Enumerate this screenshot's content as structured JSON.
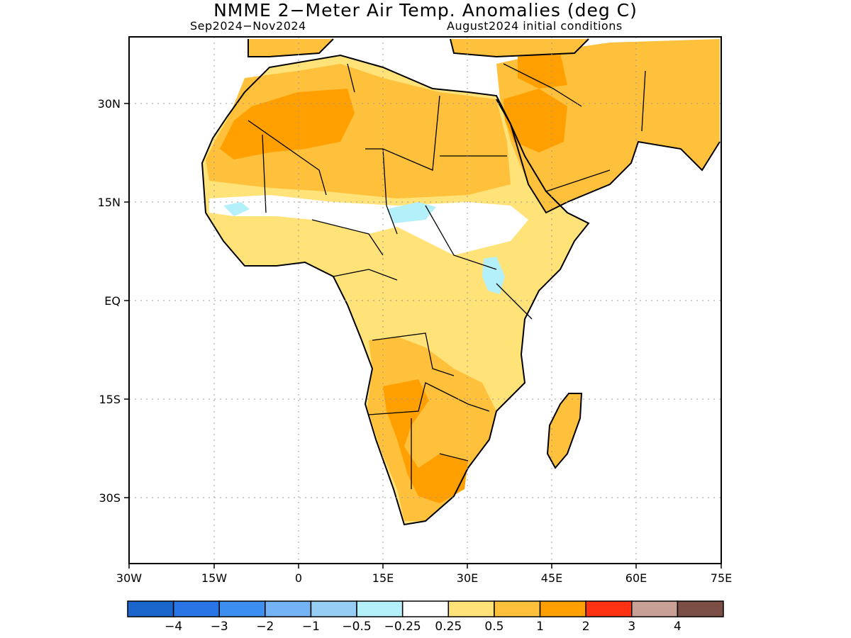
{
  "title": "NMME 2−Meter Air Temp. Anomalies (deg C)",
  "period": "Sep2024−Nov2024",
  "initial_conditions": "August2024 initial conditions",
  "map": {
    "lon_labels": [
      "30W",
      "15W",
      "0",
      "15E",
      "30E",
      "45E",
      "60E",
      "75E"
    ],
    "lat_labels": [
      "30N",
      "15N",
      "EQ",
      "15S",
      "30S"
    ],
    "land_color": "#ffffff"
  },
  "colorbar": {
    "colors": [
      "#1a66cc",
      "#2a75e6",
      "#3d8fef",
      "#74b3f5",
      "#96cdf5",
      "#b4f0fa",
      "#ffffff",
      "#ffe278",
      "#ffc03c",
      "#ffa000",
      "#ff3214",
      "#c8a096",
      "#7a4e44"
    ],
    "labels": [
      "−4",
      "−3",
      "−2",
      "−1",
      "−0.5",
      "−0.25",
      "0.25",
      "0.5",
      "1",
      "2",
      "3",
      "4"
    ]
  }
}
